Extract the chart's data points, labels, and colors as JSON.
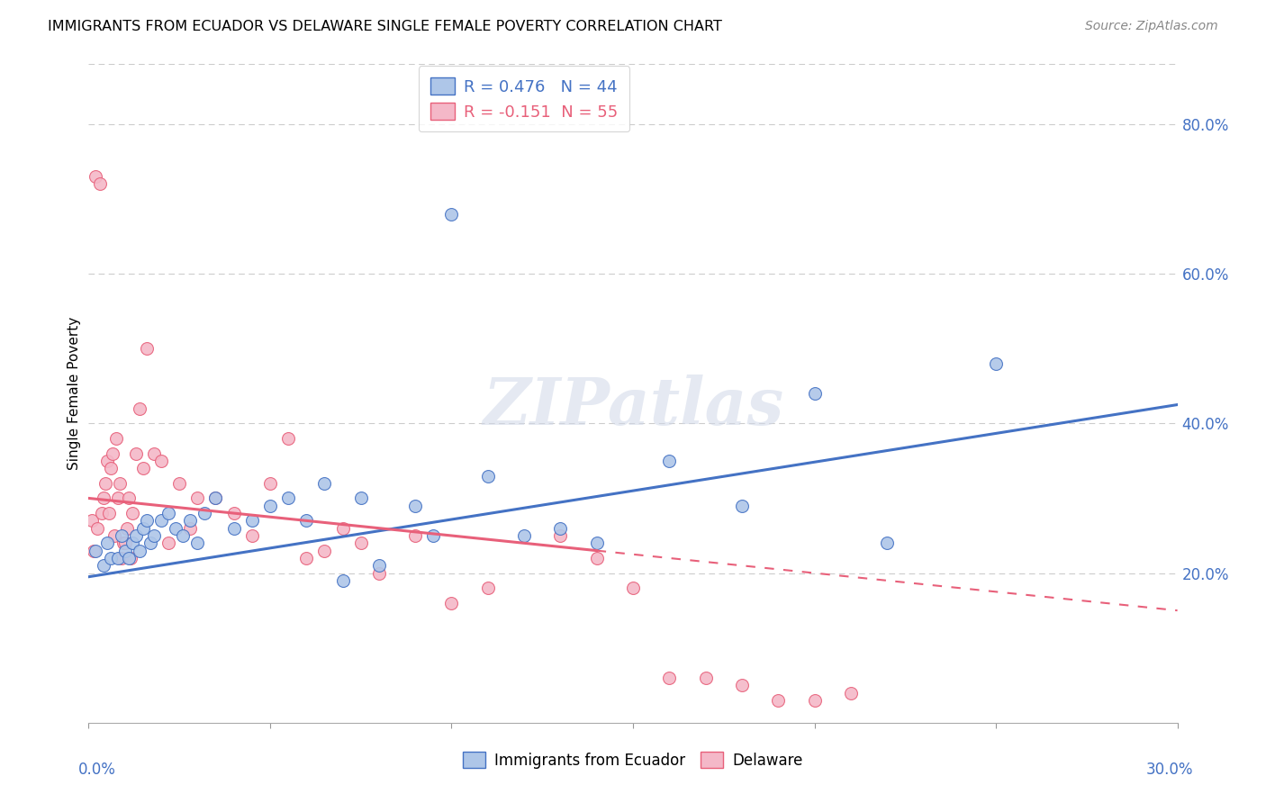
{
  "title": "IMMIGRANTS FROM ECUADOR VS DELAWARE SINGLE FEMALE POVERTY CORRELATION CHART",
  "source": "Source: ZipAtlas.com",
  "ylabel": "Single Female Poverty",
  "right_yticks": [
    20.0,
    40.0,
    60.0,
    80.0
  ],
  "x_min": 0.0,
  "x_max": 30.0,
  "y_min": 0.0,
  "y_max": 88.0,
  "color_blue": "#aec6e8",
  "color_blue_dark": "#4472c4",
  "color_pink": "#f4b8c8",
  "color_pink_dark": "#e8607a",
  "watermark": "ZIPatlas",
  "blue_line_x0": 0.0,
  "blue_line_y0": 19.5,
  "blue_line_x1": 30.0,
  "blue_line_y1": 42.5,
  "pink_line_x0": 0.0,
  "pink_line_y0": 30.0,
  "pink_line_x1": 30.0,
  "pink_line_y1": 15.0,
  "pink_solid_end_x": 14.0,
  "blue_scatter_x": [
    0.2,
    0.4,
    0.5,
    0.6,
    0.8,
    0.9,
    1.0,
    1.1,
    1.2,
    1.3,
    1.4,
    1.5,
    1.6,
    1.7,
    1.8,
    2.0,
    2.2,
    2.4,
    2.6,
    2.8,
    3.0,
    3.2,
    3.5,
    4.0,
    4.5,
    5.0,
    5.5,
    6.0,
    6.5,
    7.0,
    7.5,
    8.0,
    9.0,
    9.5,
    10.0,
    11.0,
    12.0,
    13.0,
    14.0,
    16.0,
    18.0,
    20.0,
    22.0,
    25.0
  ],
  "blue_scatter_y": [
    23.0,
    21.0,
    24.0,
    22.0,
    22.0,
    25.0,
    23.0,
    22.0,
    24.0,
    25.0,
    23.0,
    26.0,
    27.0,
    24.0,
    25.0,
    27.0,
    28.0,
    26.0,
    25.0,
    27.0,
    24.0,
    28.0,
    30.0,
    26.0,
    27.0,
    29.0,
    30.0,
    27.0,
    32.0,
    19.0,
    30.0,
    21.0,
    29.0,
    25.0,
    68.0,
    33.0,
    25.0,
    26.0,
    24.0,
    35.0,
    29.0,
    44.0,
    24.0,
    48.0
  ],
  "pink_scatter_x": [
    0.1,
    0.15,
    0.2,
    0.25,
    0.3,
    0.35,
    0.4,
    0.45,
    0.5,
    0.55,
    0.6,
    0.65,
    0.7,
    0.75,
    0.8,
    0.85,
    0.9,
    0.95,
    1.0,
    1.05,
    1.1,
    1.15,
    1.2,
    1.3,
    1.4,
    1.5,
    1.6,
    1.8,
    2.0,
    2.2,
    2.5,
    2.8,
    3.0,
    3.5,
    4.0,
    4.5,
    5.0,
    5.5,
    6.0,
    6.5,
    7.0,
    7.5,
    8.0,
    9.0,
    10.0,
    11.0,
    13.0,
    14.0,
    15.0,
    16.0,
    17.0,
    18.0,
    19.0,
    20.0,
    21.0
  ],
  "pink_scatter_y": [
    27.0,
    23.0,
    73.0,
    26.0,
    72.0,
    28.0,
    30.0,
    32.0,
    35.0,
    28.0,
    34.0,
    36.0,
    25.0,
    38.0,
    30.0,
    32.0,
    22.0,
    24.0,
    24.0,
    26.0,
    30.0,
    22.0,
    28.0,
    36.0,
    42.0,
    34.0,
    50.0,
    36.0,
    35.0,
    24.0,
    32.0,
    26.0,
    30.0,
    30.0,
    28.0,
    25.0,
    32.0,
    38.0,
    22.0,
    23.0,
    26.0,
    24.0,
    20.0,
    25.0,
    16.0,
    18.0,
    25.0,
    22.0,
    18.0,
    6.0,
    6.0,
    5.0,
    3.0,
    3.0,
    4.0
  ]
}
